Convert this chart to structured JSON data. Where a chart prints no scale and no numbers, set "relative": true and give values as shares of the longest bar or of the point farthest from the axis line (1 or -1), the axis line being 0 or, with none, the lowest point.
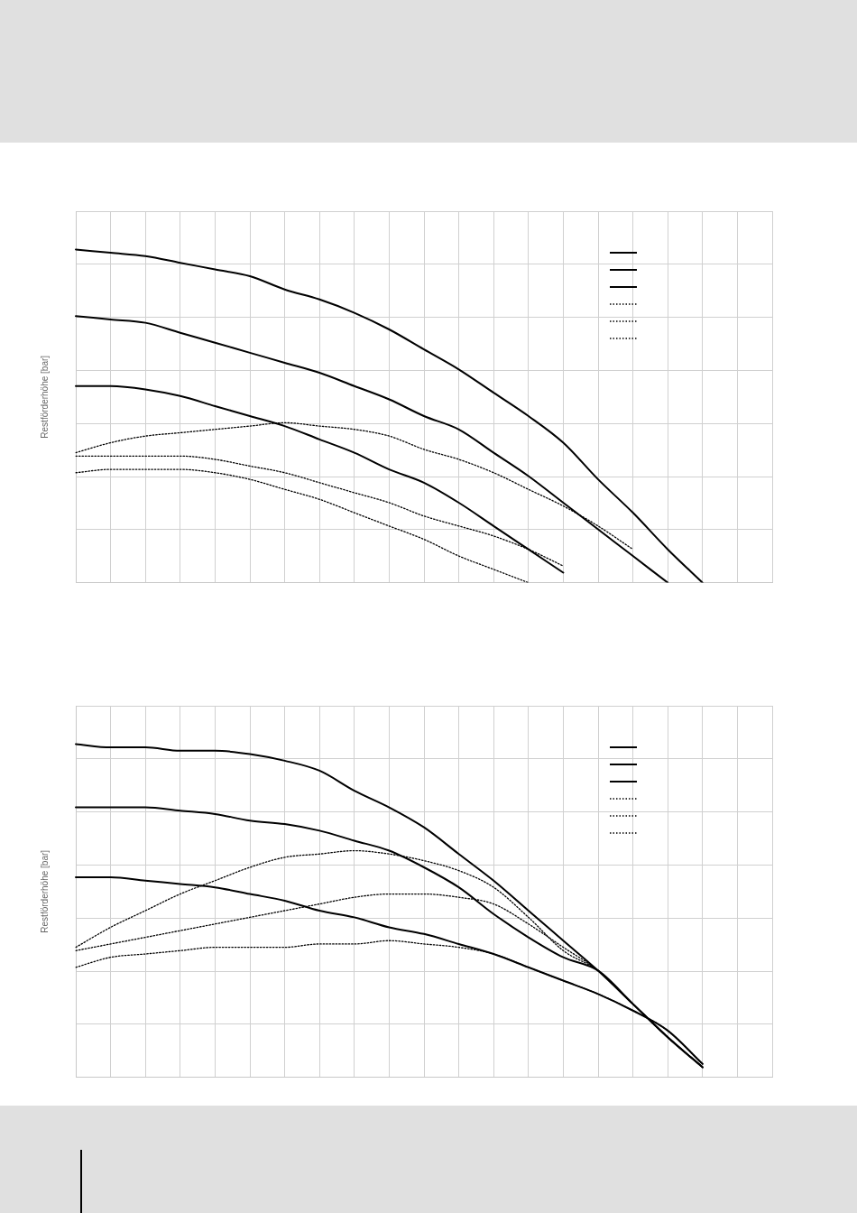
{
  "chart_data": [
    {
      "type": "line",
      "ylabel": "Restförderhöhe [bar]",
      "relative": true,
      "grid": true,
      "marker": "none",
      "categories": [
        null,
        null,
        null,
        null,
        null,
        null,
        null,
        null,
        null,
        null,
        null,
        null,
        null,
        null,
        null,
        null,
        null,
        null,
        null,
        null,
        null
      ],
      "series": [
        {
          "color": "#000000",
          "line_style": "solid",
          "values": [
            1.0,
            0.99,
            0.98,
            0.96,
            0.94,
            0.92,
            0.88,
            0.85,
            0.81,
            0.76,
            0.7,
            0.64,
            0.57,
            0.5,
            0.42,
            0.31,
            0.21,
            0.1,
            0,
            null,
            null
          ]
        },
        {
          "color": "#000000",
          "line_style": "solid",
          "values": [
            0.8,
            0.79,
            0.78,
            0.75,
            0.72,
            0.69,
            0.66,
            0.63,
            0.59,
            0.55,
            0.5,
            0.46,
            0.39,
            0.32,
            0.24,
            0.16,
            0.08,
            0,
            null,
            null,
            null
          ]
        },
        {
          "color": "#000000",
          "line_style": "solid",
          "values": [
            0.59,
            0.59,
            0.58,
            0.56,
            0.53,
            0.5,
            0.47,
            0.43,
            0.39,
            0.34,
            0.3,
            0.24,
            0.17,
            0.1,
            0.03,
            null,
            null,
            null,
            null,
            null,
            null
          ]
        },
        {
          "color": "#000000",
          "line_style": "dotted",
          "values": [
            0.39,
            0.42,
            0.44,
            0.45,
            0.46,
            0.47,
            0.48,
            0.47,
            0.46,
            0.44,
            0.4,
            0.37,
            0.33,
            0.28,
            0.23,
            0.17,
            0.1,
            null,
            null,
            null,
            null
          ]
        },
        {
          "color": "#000000",
          "line_style": "dotted",
          "values": [
            0.38,
            0.38,
            0.38,
            0.38,
            0.37,
            0.35,
            0.33,
            0.3,
            0.27,
            0.24,
            0.2,
            0.17,
            0.14,
            0.1,
            0.05,
            null,
            null,
            null,
            null,
            null,
            null
          ]
        },
        {
          "color": "#000000",
          "line_style": "dotted",
          "values": [
            0.33,
            0.34,
            0.34,
            0.34,
            0.33,
            0.31,
            0.28,
            0.25,
            0.21,
            0.17,
            0.13,
            0.08,
            0.04,
            0,
            null,
            null,
            null,
            null,
            null,
            null,
            null
          ]
        }
      ]
    },
    {
      "type": "line",
      "ylabel": "Restförderhöhe [bar]",
      "relative": true,
      "grid": true,
      "marker": "none",
      "categories": [
        null,
        null,
        null,
        null,
        null,
        null,
        null,
        null,
        null,
        null,
        null,
        null,
        null,
        null,
        null,
        null,
        null,
        null,
        null,
        null,
        null
      ],
      "series": [
        {
          "color": "#000000",
          "line_style": "solid",
          "values": [
            1.0,
            0.99,
            0.99,
            0.98,
            0.98,
            0.97,
            0.95,
            0.92,
            0.86,
            0.81,
            0.75,
            0.67,
            0.59,
            0.5,
            0.41,
            0.32,
            0.22,
            0.12,
            0.03,
            null,
            null
          ]
        },
        {
          "color": "#000000",
          "line_style": "solid",
          "values": [
            0.81,
            0.81,
            0.81,
            0.8,
            0.79,
            0.77,
            0.76,
            0.74,
            0.71,
            0.68,
            0.63,
            0.57,
            0.49,
            0.42,
            0.36,
            0.32,
            0.22,
            0.12,
            0.03,
            null,
            null
          ]
        },
        {
          "color": "#000000",
          "line_style": "solid",
          "values": [
            0.6,
            0.6,
            0.59,
            0.58,
            0.57,
            0.55,
            0.53,
            0.5,
            0.48,
            0.45,
            0.43,
            0.4,
            0.37,
            0.33,
            0.29,
            0.25,
            0.2,
            0.14,
            0.04,
            null,
            null
          ]
        },
        {
          "color": "#000000",
          "line_style": "dotted",
          "values": [
            0.39,
            0.45,
            0.5,
            0.55,
            0.59,
            0.63,
            0.66,
            0.67,
            0.68,
            0.67,
            0.65,
            0.62,
            0.57,
            0.48,
            0.38,
            0.32,
            0.22,
            0.12,
            0.03,
            null,
            null
          ]
        },
        {
          "color": "#000000",
          "line_style": "dotted",
          "values": [
            0.38,
            0.4,
            0.42,
            0.44,
            0.46,
            0.48,
            0.5,
            0.52,
            0.54,
            0.55,
            0.55,
            0.54,
            0.52,
            0.46,
            0.39,
            0.32,
            0.22,
            0.12,
            0.03,
            null,
            null
          ]
        },
        {
          "color": "#000000",
          "line_style": "dotted",
          "values": [
            0.33,
            0.36,
            0.37,
            0.38,
            0.39,
            0.39,
            0.39,
            0.4,
            0.4,
            0.41,
            0.4,
            0.39,
            0.37,
            0.33,
            0.29,
            0.25,
            0.2,
            0.14,
            0.04,
            null,
            null
          ]
        }
      ]
    }
  ]
}
